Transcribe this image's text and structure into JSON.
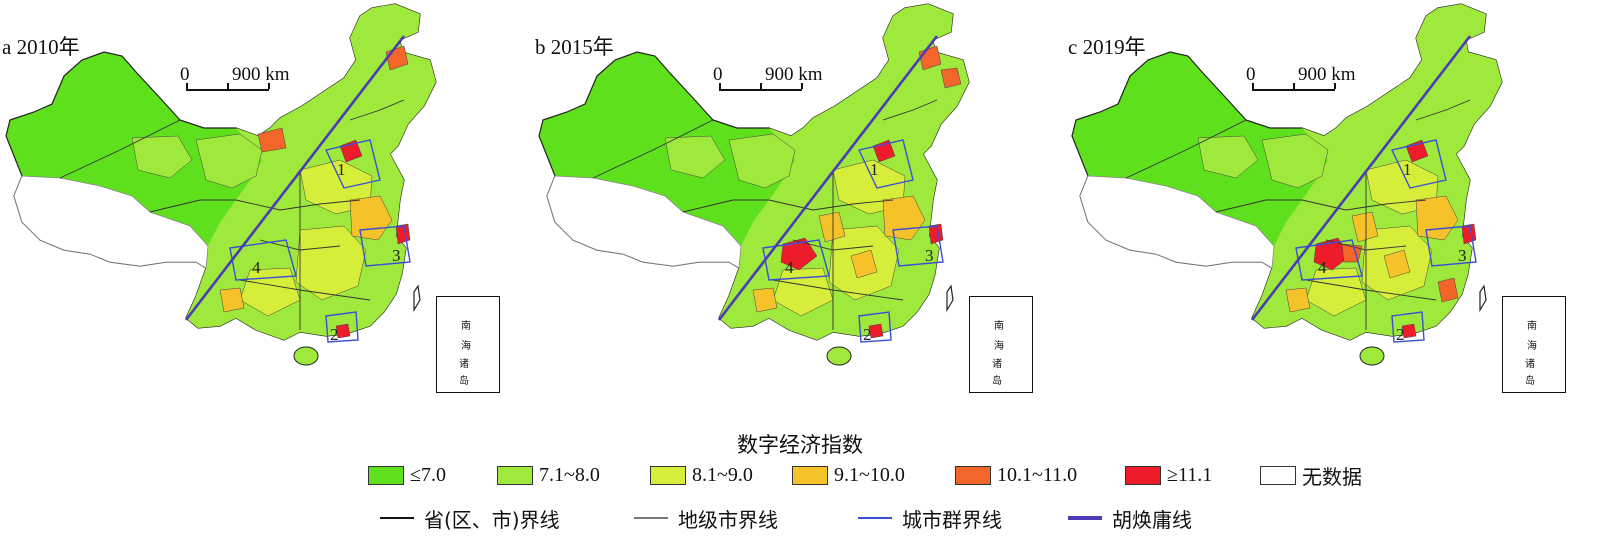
{
  "panels": [
    {
      "label": "a  2010年"
    },
    {
      "label": "b  2015年"
    },
    {
      "label": "c  2019年"
    }
  ],
  "scale": {
    "zero": "0",
    "distance": "900 km"
  },
  "region_numbers": [
    "1",
    "2",
    "3",
    "4"
  ],
  "inset_label": [
    "南",
    "海",
    "诸",
    "岛"
  ],
  "legend": {
    "title": "数字经济指数",
    "classes": [
      {
        "label": "≤7.0",
        "color": "#5ee01c"
      },
      {
        "label": "7.1~8.0",
        "color": "#9fe83c"
      },
      {
        "label": "8.1~9.0",
        "color": "#d6ee3a"
      },
      {
        "label": "9.1~10.0",
        "color": "#f6c22a"
      },
      {
        "label": "10.1~11.0",
        "color": "#f2662a"
      },
      {
        "label": "≥11.1",
        "color": "#ee1c2a"
      },
      {
        "label": "无数据",
        "color": "#ffffff"
      }
    ],
    "lines": [
      {
        "label": "省(区、市)界线",
        "color": "#111111"
      },
      {
        "label": "地级市界线",
        "color": "#777777"
      },
      {
        "label": "城市群界线",
        "color": "#3a4fd8"
      },
      {
        "label": "胡焕庸线",
        "color": "#4b3bb4"
      }
    ]
  }
}
